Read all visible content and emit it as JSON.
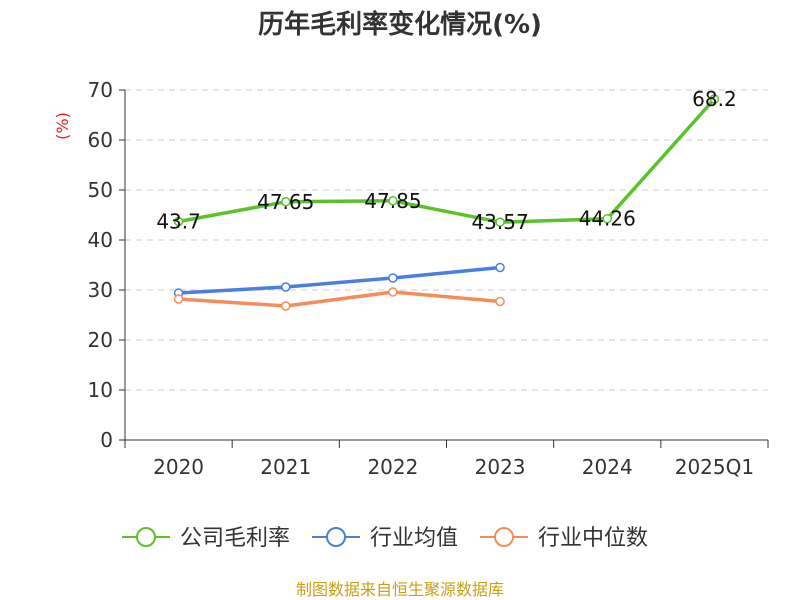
{
  "chart_data": {
    "type": "line",
    "title": "历年毛利率变化情况(%)",
    "ylabel": "(%)",
    "xlabel": "",
    "categories": [
      "2020",
      "2021",
      "2022",
      "2023",
      "2024",
      "2025Q1"
    ],
    "ylim": [
      0,
      70
    ],
    "yticks": [
      0,
      10,
      20,
      30,
      40,
      50,
      60,
      70
    ],
    "grid": true,
    "legend_position": "bottom",
    "series": [
      {
        "name": "公司毛利率",
        "color": "#5bc22a",
        "values": [
          43.7,
          47.65,
          47.85,
          43.57,
          44.26,
          68.2
        ],
        "labels": [
          "43.7",
          "47.65",
          "47.85",
          "43.57",
          "44.26",
          "68.2"
        ]
      },
      {
        "name": "行业均值",
        "color": "#4a7fe0",
        "values": [
          29.4,
          30.6,
          32.4,
          34.5,
          null,
          null
        ]
      },
      {
        "name": "行业中位数",
        "color": "#f58d5b",
        "values": [
          28.2,
          26.8,
          29.6,
          27.7,
          null,
          null
        ]
      }
    ]
  },
  "source_text": "制图数据来自恒生聚源数据库"
}
